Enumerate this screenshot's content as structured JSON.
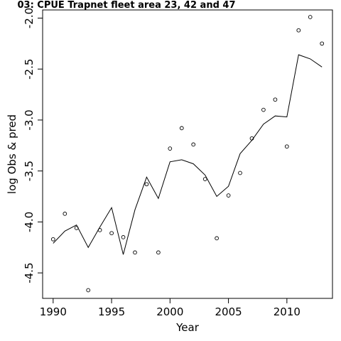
{
  "chart_data": {
    "type": "scatter",
    "title": "03: CPUE Trapnet fleet area 23, 42 and 47",
    "xlabel": "Year",
    "ylabel": "log Obs & pred",
    "xlim": [
      1989.1,
      2013.9
    ],
    "ylim": [
      -4.75,
      -1.92
    ],
    "x_ticks": [
      1990,
      1995,
      2000,
      2005,
      2010
    ],
    "y_ticks": [
      -2.0,
      -2.5,
      -3.0,
      -3.5,
      -4.0,
      -4.5
    ],
    "y_tick_labels": [
      "-2.0",
      "-2.5",
      "-3.0",
      "-3.5",
      "-4.0",
      "-4.5"
    ],
    "grid": false,
    "series": [
      {
        "kind": "points",
        "marker": "open-circle",
        "x": [
          1990,
          1991,
          1992,
          1993,
          1994,
          1995,
          1996,
          1997,
          1998,
          1999,
          2000,
          2001,
          2002,
          2003,
          2004,
          2005,
          2006,
          2007,
          2008,
          2009,
          2010,
          2011,
          2012,
          2013
        ],
        "values": [
          -4.17,
          -3.92,
          -4.06,
          -4.67,
          -4.08,
          -4.11,
          -4.15,
          -4.3,
          -3.63,
          -4.3,
          -3.28,
          -3.08,
          -3.24,
          -3.58,
          -4.16,
          -3.74,
          -3.52,
          -3.18,
          -2.9,
          -2.8,
          -3.26,
          -2.12,
          -1.99,
          -2.25
        ]
      },
      {
        "kind": "line",
        "x": [
          1990,
          1991,
          1992,
          1993,
          1994,
          1995,
          1996,
          1997,
          1998,
          1999,
          2000,
          2001,
          2002,
          2003,
          2004,
          2005,
          2006,
          2007,
          2008,
          2009,
          2010,
          2011,
          2012,
          2013
        ],
        "values": [
          -4.21,
          -4.09,
          -4.03,
          -4.25,
          -4.05,
          -3.86,
          -4.32,
          -3.88,
          -3.56,
          -3.77,
          -3.41,
          -3.39,
          -3.43,
          -3.54,
          -3.75,
          -3.65,
          -3.33,
          -3.2,
          -3.04,
          -2.96,
          -2.97,
          -2.36,
          -2.4,
          -2.48
        ]
      }
    ]
  }
}
